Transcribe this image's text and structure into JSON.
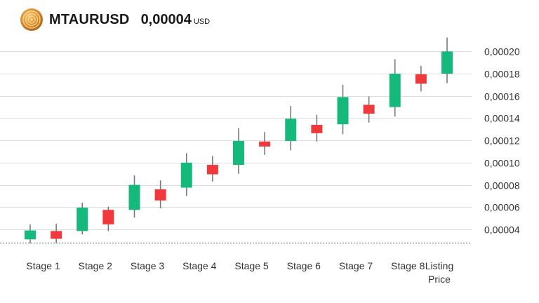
{
  "header": {
    "symbol": "MTAURUSD",
    "price": "0,00004",
    "unit": "USD",
    "logo_icon": "gold-coin-logo-icon"
  },
  "colors": {
    "up": "#16b97c",
    "down": "#f0393d",
    "wick": "#7a7a7a",
    "grid": "#dddddd",
    "baseline": "#555555"
  },
  "chart_data": {
    "type": "candlestick",
    "title": "",
    "xlabel": "",
    "ylabel": "",
    "ylim": [
      2.8e-05,
      0.000216
    ],
    "grid": true,
    "y_axis_position": "right",
    "y_ticks": [
      {
        "value": 4e-05,
        "label": "0,00004"
      },
      {
        "value": 6e-05,
        "label": "0,00006"
      },
      {
        "value": 8e-05,
        "label": "0,00008"
      },
      {
        "value": 0.0001,
        "label": "0,00010"
      },
      {
        "value": 0.00012,
        "label": "0,00012"
      },
      {
        "value": 0.00014,
        "label": "0,00014"
      },
      {
        "value": 0.00016,
        "label": "0,00016"
      },
      {
        "value": 0.00018,
        "label": "0,00018"
      },
      {
        "value": 0.0002,
        "label": "0,00020"
      }
    ],
    "categories": [
      {
        "label": [
          "Stage 1"
        ],
        "span": 2
      },
      {
        "label": [
          "Stage 2"
        ],
        "span": 2
      },
      {
        "label": [
          "Stage 3"
        ],
        "span": 2
      },
      {
        "label": [
          "Stage 4"
        ],
        "span": 2
      },
      {
        "label": [
          "Stage 5"
        ],
        "span": 2
      },
      {
        "label": [
          "Stage 6"
        ],
        "span": 2
      },
      {
        "label": [
          "Stage 7"
        ],
        "span": 2
      },
      {
        "label": [
          "Stage 8"
        ],
        "span": 2
      },
      {
        "label": [
          "Listing",
          "Price"
        ],
        "span": 1
      }
    ],
    "candles": [
      {
        "open": 3.1e-05,
        "close": 3.9e-05,
        "low": 2.75e-05,
        "high": 4.45e-05
      },
      {
        "open": 3.85e-05,
        "close": 3.15e-05,
        "low": 2.75e-05,
        "high": 4.5e-05
      },
      {
        "open": 3.85e-05,
        "close": 5.95e-05,
        "low": 3.55e-05,
        "high": 6.4e-05
      },
      {
        "open": 5.75e-05,
        "close": 4.45e-05,
        "low": 3.85e-05,
        "high": 6.05e-05
      },
      {
        "open": 5.75e-05,
        "close": 8e-05,
        "low": 5.05e-05,
        "high": 8.85e-05
      },
      {
        "open": 7.6e-05,
        "close": 6.6e-05,
        "low": 5.9e-05,
        "high": 8.4e-05
      },
      {
        "open": 7.75e-05,
        "close": 0.0001,
        "low": 7e-05,
        "high": 0.0001085
      },
      {
        "open": 9.8e-05,
        "close": 8.95e-05,
        "low": 8.3e-05,
        "high": 0.000106
      },
      {
        "open": 9.8e-05,
        "close": 0.0001195,
        "low": 9e-05,
        "high": 0.000131
      },
      {
        "open": 0.000119,
        "close": 0.0001145,
        "low": 0.000107,
        "high": 0.0001275
      },
      {
        "open": 0.0001195,
        "close": 0.0001395,
        "low": 0.000111,
        "high": 0.000151
      },
      {
        "open": 0.000134,
        "close": 0.0001265,
        "low": 0.000119,
        "high": 0.000143
      },
      {
        "open": 0.0001345,
        "close": 0.000159,
        "low": 0.0001255,
        "high": 0.00017
      },
      {
        "open": 0.000152,
        "close": 0.000144,
        "low": 0.000136,
        "high": 0.0001595
      },
      {
        "open": 0.00015,
        "close": 0.00018,
        "low": 0.0001415,
        "high": 0.000193
      },
      {
        "open": 0.0001795,
        "close": 0.000171,
        "low": 0.000164,
        "high": 0.000187
      },
      {
        "open": 0.00018,
        "close": 0.0002,
        "low": 0.0001715,
        "high": 0.0002125
      }
    ]
  }
}
